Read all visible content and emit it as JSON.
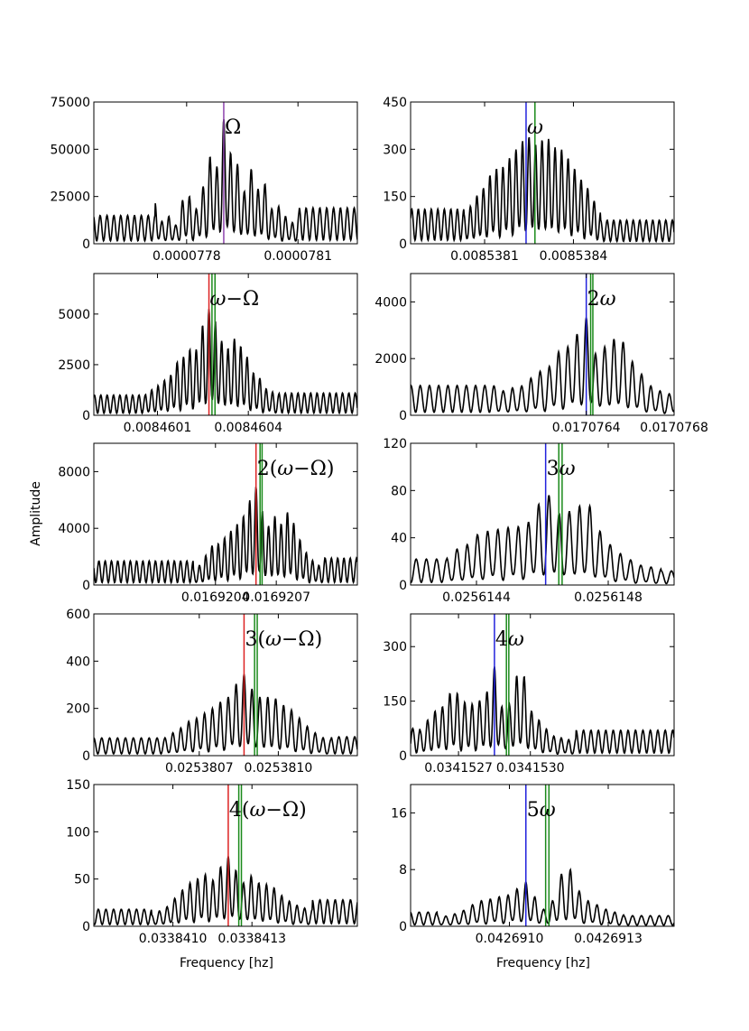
{
  "figure": {
    "xlabel": "Frequency [hz]",
    "ylabel": "Amplitude"
  },
  "chart_data": [
    {
      "type": "line",
      "annotation": "Ω",
      "xlim": [
        7.755e-05,
        7.826e-05
      ],
      "ylim": [
        0,
        75000
      ],
      "yticks": [
        0,
        25000,
        50000,
        75000
      ],
      "yticklabels": [
        "0",
        "25000",
        "50000",
        "75000"
      ],
      "xticks": [
        7.78e-05,
        7.81e-05
      ],
      "xticklabels": [
        "0.0000778",
        "0.0000781"
      ],
      "markers": [
        {
          "x": 7.79e-05,
          "color": "#8e44ad"
        }
      ],
      "center": 7.79e-05,
      "spacing": 1.85e-08,
      "peak": 66000,
      "profile": [
        0.33,
        0.18,
        0.22,
        0.15,
        0.35,
        0.38,
        0.28,
        0.46,
        0.7,
        0.62,
        1.0,
        0.73,
        0.64,
        0.42,
        0.6,
        0.44,
        0.48,
        0.28,
        0.3,
        0.22,
        0.17,
        0.26
      ],
      "end": [
        15000,
        19000
      ]
    },
    {
      "type": "line",
      "annotation": "ω",
      "xlim": [
        0.00853785,
        0.00853874
      ],
      "ylim": [
        0,
        450
      ],
      "yticks": [
        0,
        150,
        300,
        450
      ],
      "yticklabels": [
        "0",
        "150",
        "300",
        "450"
      ],
      "xticks": [
        0.0085381,
        0.0085384
      ],
      "xticklabels": [
        "0.0085381",
        "0.0085384"
      ],
      "markers": [
        {
          "x": 0.00853824,
          "color": "#2222dd"
        },
        {
          "x": 0.00853827,
          "color": "#1a8a1a"
        }
      ],
      "center": 0.00853825,
      "spacing": 2.2e-08,
      "peak": 340,
      "profile": [
        0.28,
        0.35,
        0.45,
        0.52,
        0.64,
        0.7,
        0.72,
        0.8,
        0.88,
        0.96,
        1.0,
        0.93,
        0.97,
        0.98,
        0.9,
        0.88,
        0.8,
        0.7,
        0.6,
        0.52,
        0.4,
        0.3
      ],
      "end": [
        110,
        75
      ]
    },
    {
      "type": "line",
      "annotation": "ω−Ω",
      "xlim": [
        0.00845989,
        0.00846076
      ],
      "ylim": [
        0,
        7000
      ],
      "yticks": [
        0,
        2500,
        5000
      ],
      "yticklabels": [
        "0",
        "2500",
        "5000"
      ],
      "xticks": [
        0.0084601,
        0.0084604
      ],
      "xticklabels": [
        "0.0084601",
        "0.0084604"
      ],
      "markers": [
        {
          "x": 0.00846027,
          "color": "#dd2222"
        },
        {
          "x": 0.00846028,
          "color": "#1a8a1a"
        },
        {
          "x": 0.00846029,
          "color": "#1a8a1a"
        }
      ],
      "center": 0.00846027,
      "spacing": 2.1e-08,
      "peak": 5250,
      "profile": [
        0.2,
        0.24,
        0.28,
        0.33,
        0.38,
        0.5,
        0.55,
        0.62,
        0.62,
        0.85,
        1.0,
        0.88,
        0.7,
        0.63,
        0.72,
        0.65,
        0.55,
        0.4,
        0.35,
        0.25,
        0.22,
        0.2
      ],
      "end": [
        1000,
        1100
      ]
    },
    {
      "type": "line",
      "annotation": "2ω",
      "xlim": [
        0.0170756,
        0.0170768
      ],
      "ylim": [
        0,
        5000
      ],
      "yticks": [
        0,
        2000,
        4000
      ],
      "yticklabels": [
        "0",
        "2000",
        "4000"
      ],
      "xticks": [
        0.0170764,
        0.0170768
      ],
      "xticklabels": [
        "0.0170764",
        "0.0170768"
      ],
      "markers": [
        {
          "x": 0.0170764,
          "color": "#2222dd"
        },
        {
          "x": 0.01707642,
          "color": "#1a8a1a"
        },
        {
          "x": 0.01707643,
          "color": "#1a8a1a"
        }
      ],
      "center": 0.0170764,
      "spacing": 4.2e-08,
      "peak": 3450,
      "profile": [
        0.3,
        0.25,
        0.28,
        0.3,
        0.38,
        0.45,
        0.5,
        0.65,
        0.7,
        0.83,
        1.0,
        0.63,
        0.7,
        0.78,
        0.75,
        0.55,
        0.42,
        0.3,
        0.25,
        0.22,
        0.2,
        0.2
      ],
      "end": [
        1050,
        820
      ]
    },
    {
      "type": "line",
      "annotation": "2(ω−Ω)",
      "xlim": [
        0.0169198,
        0.0169211
      ],
      "ylim": [
        0,
        10000
      ],
      "yticks": [
        0,
        4000,
        8000
      ],
      "yticklabels": [
        "0",
        "4000",
        "8000"
      ],
      "xticks": [
        0.0169204,
        0.0169207
      ],
      "xticklabels": [
        "0.0169204",
        "0.0169207"
      ],
      "markers": [
        {
          "x": 0.0169206,
          "color": "#dd2222"
        },
        {
          "x": 0.01692062,
          "color": "#1a8a1a"
        },
        {
          "x": 0.01692063,
          "color": "#1a8a1a"
        }
      ],
      "center": 0.0169206,
      "spacing": 3.1e-08,
      "peak": 6950,
      "profile": [
        0.16,
        0.2,
        0.3,
        0.4,
        0.42,
        0.48,
        0.55,
        0.62,
        0.7,
        0.86,
        1.0,
        0.75,
        0.6,
        0.7,
        0.62,
        0.74,
        0.63,
        0.46,
        0.33,
        0.25,
        0.2,
        0.28
      ],
      "end": [
        1700,
        1900
      ]
    },
    {
      "type": "line",
      "annotation": "3ω",
      "xlim": [
        0.0256142,
        0.025615
      ],
      "ylim": [
        0,
        120
      ],
      "yticks": [
        0,
        40,
        80,
        120
      ],
      "yticklabels": [
        "0",
        "40",
        "80",
        "120"
      ],
      "xticks": [
        0.0256144,
        0.0256148
      ],
      "xticklabels": [
        "0.0256144",
        "0.0256148"
      ],
      "markers": [
        {
          "x": 0.02561461,
          "color": "#2222dd"
        },
        {
          "x": 0.02561465,
          "color": "#1a8a1a"
        },
        {
          "x": 0.02561466,
          "color": "#1a8a1a"
        }
      ],
      "center": 0.02561462,
      "spacing": 3.1e-08,
      "peak": 76,
      "profile": [
        0.3,
        0.4,
        0.45,
        0.56,
        0.6,
        0.62,
        0.64,
        0.65,
        0.7,
        0.9,
        1.0,
        0.8,
        0.82,
        0.88,
        0.88,
        0.6,
        0.45,
        0.35,
        0.28,
        0.22,
        0.2,
        0.18
      ],
      "end": [
        22,
        12
      ]
    },
    {
      "type": "line",
      "annotation": "3(ω−Ω)",
      "xlim": [
        0.0253803,
        0.0253813
      ],
      "ylim": [
        0,
        600
      ],
      "yticks": [
        0,
        200,
        400,
        600
      ],
      "yticklabels": [
        "0",
        "200",
        "400",
        "600"
      ],
      "xticks": [
        0.0253807,
        0.025381
      ],
      "xticklabels": [
        "0.0253807",
        "0.0253810"
      ],
      "markers": [
        {
          "x": 0.02538087,
          "color": "#dd2222"
        },
        {
          "x": 0.02538091,
          "color": "#1a8a1a"
        },
        {
          "x": 0.02538092,
          "color": "#1a8a1a"
        }
      ],
      "center": 0.02538087,
      "spacing": 3e-08,
      "peak": 345,
      "profile": [
        0.22,
        0.28,
        0.34,
        0.42,
        0.46,
        0.52,
        0.58,
        0.66,
        0.72,
        0.88,
        1.0,
        0.82,
        0.72,
        0.72,
        0.7,
        0.62,
        0.56,
        0.46,
        0.36,
        0.28,
        0.22,
        0.2
      ],
      "end": [
        75,
        80
      ]
    },
    {
      "type": "line",
      "annotation": "4ω",
      "xlim": [
        0.0341525,
        0.0341536
      ],
      "ylim": [
        0,
        390
      ],
      "yticks": [
        0,
        150,
        300
      ],
      "yticklabels": [
        "0",
        "150",
        "300"
      ],
      "xticks": [
        0.0341527,
        0.034153
      ],
      "xticklabels": [
        "0.0341527",
        "0.0341530"
      ],
      "markers": [
        {
          "x": 0.03415285,
          "color": "#2222dd"
        },
        {
          "x": 0.0341529,
          "color": "#1a8a1a"
        },
        {
          "x": 0.03415291,
          "color": "#1a8a1a"
        }
      ],
      "center": 0.03415285,
      "spacing": 3.1e-08,
      "peak": 245,
      "profile": [
        0.28,
        0.4,
        0.5,
        0.55,
        0.7,
        0.7,
        0.6,
        0.58,
        0.62,
        0.72,
        1.0,
        0.55,
        0.58,
        0.9,
        0.89,
        0.5,
        0.4,
        0.3,
        0.22,
        0.2,
        0.18,
        0.2
      ],
      "end": [
        75,
        70
      ]
    },
    {
      "type": "line",
      "annotation": "4(ω−Ω)",
      "xlim": [
        0.0338407,
        0.0338417
      ],
      "ylim": [
        0,
        150
      ],
      "yticks": [
        0,
        50,
        100,
        150
      ],
      "yticklabels": [
        "0",
        "50",
        "100",
        "150"
      ],
      "xticks": [
        0.033841,
        0.0338413
      ],
      "xticklabels": [
        "0.0338410",
        "0.0338413"
      ],
      "markers": [
        {
          "x": 0.03384121,
          "color": "#dd2222"
        },
        {
          "x": 0.03384125,
          "color": "#1a8a1a"
        },
        {
          "x": 0.03384126,
          "color": "#1a8a1a"
        }
      ],
      "center": 0.03384121,
      "spacing": 2.9e-08,
      "peak": 74,
      "profile": [
        0.16,
        0.22,
        0.28,
        0.4,
        0.52,
        0.62,
        0.68,
        0.74,
        0.66,
        0.85,
        1.0,
        0.8,
        0.62,
        0.72,
        0.62,
        0.6,
        0.55,
        0.44,
        0.36,
        0.3,
        0.26,
        0.24
      ],
      "end": [
        18,
        28
      ]
    },
    {
      "type": "line",
      "annotation": "5ω",
      "xlim": [
        0.0426907,
        0.0426915
      ],
      "ylim": [
        0,
        20
      ],
      "yticks": [
        0,
        8,
        16
      ],
      "yticklabels": [
        "0",
        "8",
        "16"
      ],
      "xticks": [
        0.042691,
        0.0426913
      ],
      "xticklabels": [
        "0.0426910",
        "0.0426913"
      ],
      "markers": [
        {
          "x": 0.04269105,
          "color": "#2222dd"
        },
        {
          "x": 0.04269111,
          "color": "#1a8a1a"
        },
        {
          "x": 0.04269112,
          "color": "#1a8a1a"
        }
      ],
      "center": 0.04269105,
      "spacing": 2.7e-08,
      "peak": 8,
      "profile": [
        0.2,
        0.18,
        0.22,
        0.28,
        0.38,
        0.45,
        0.48,
        0.52,
        0.55,
        0.66,
        0.78,
        0.52,
        0.3,
        0.45,
        0.92,
        1.0,
        0.62,
        0.45,
        0.38,
        0.3,
        0.25,
        0.2
      ],
      "end": [
        2,
        1.5
      ]
    }
  ]
}
